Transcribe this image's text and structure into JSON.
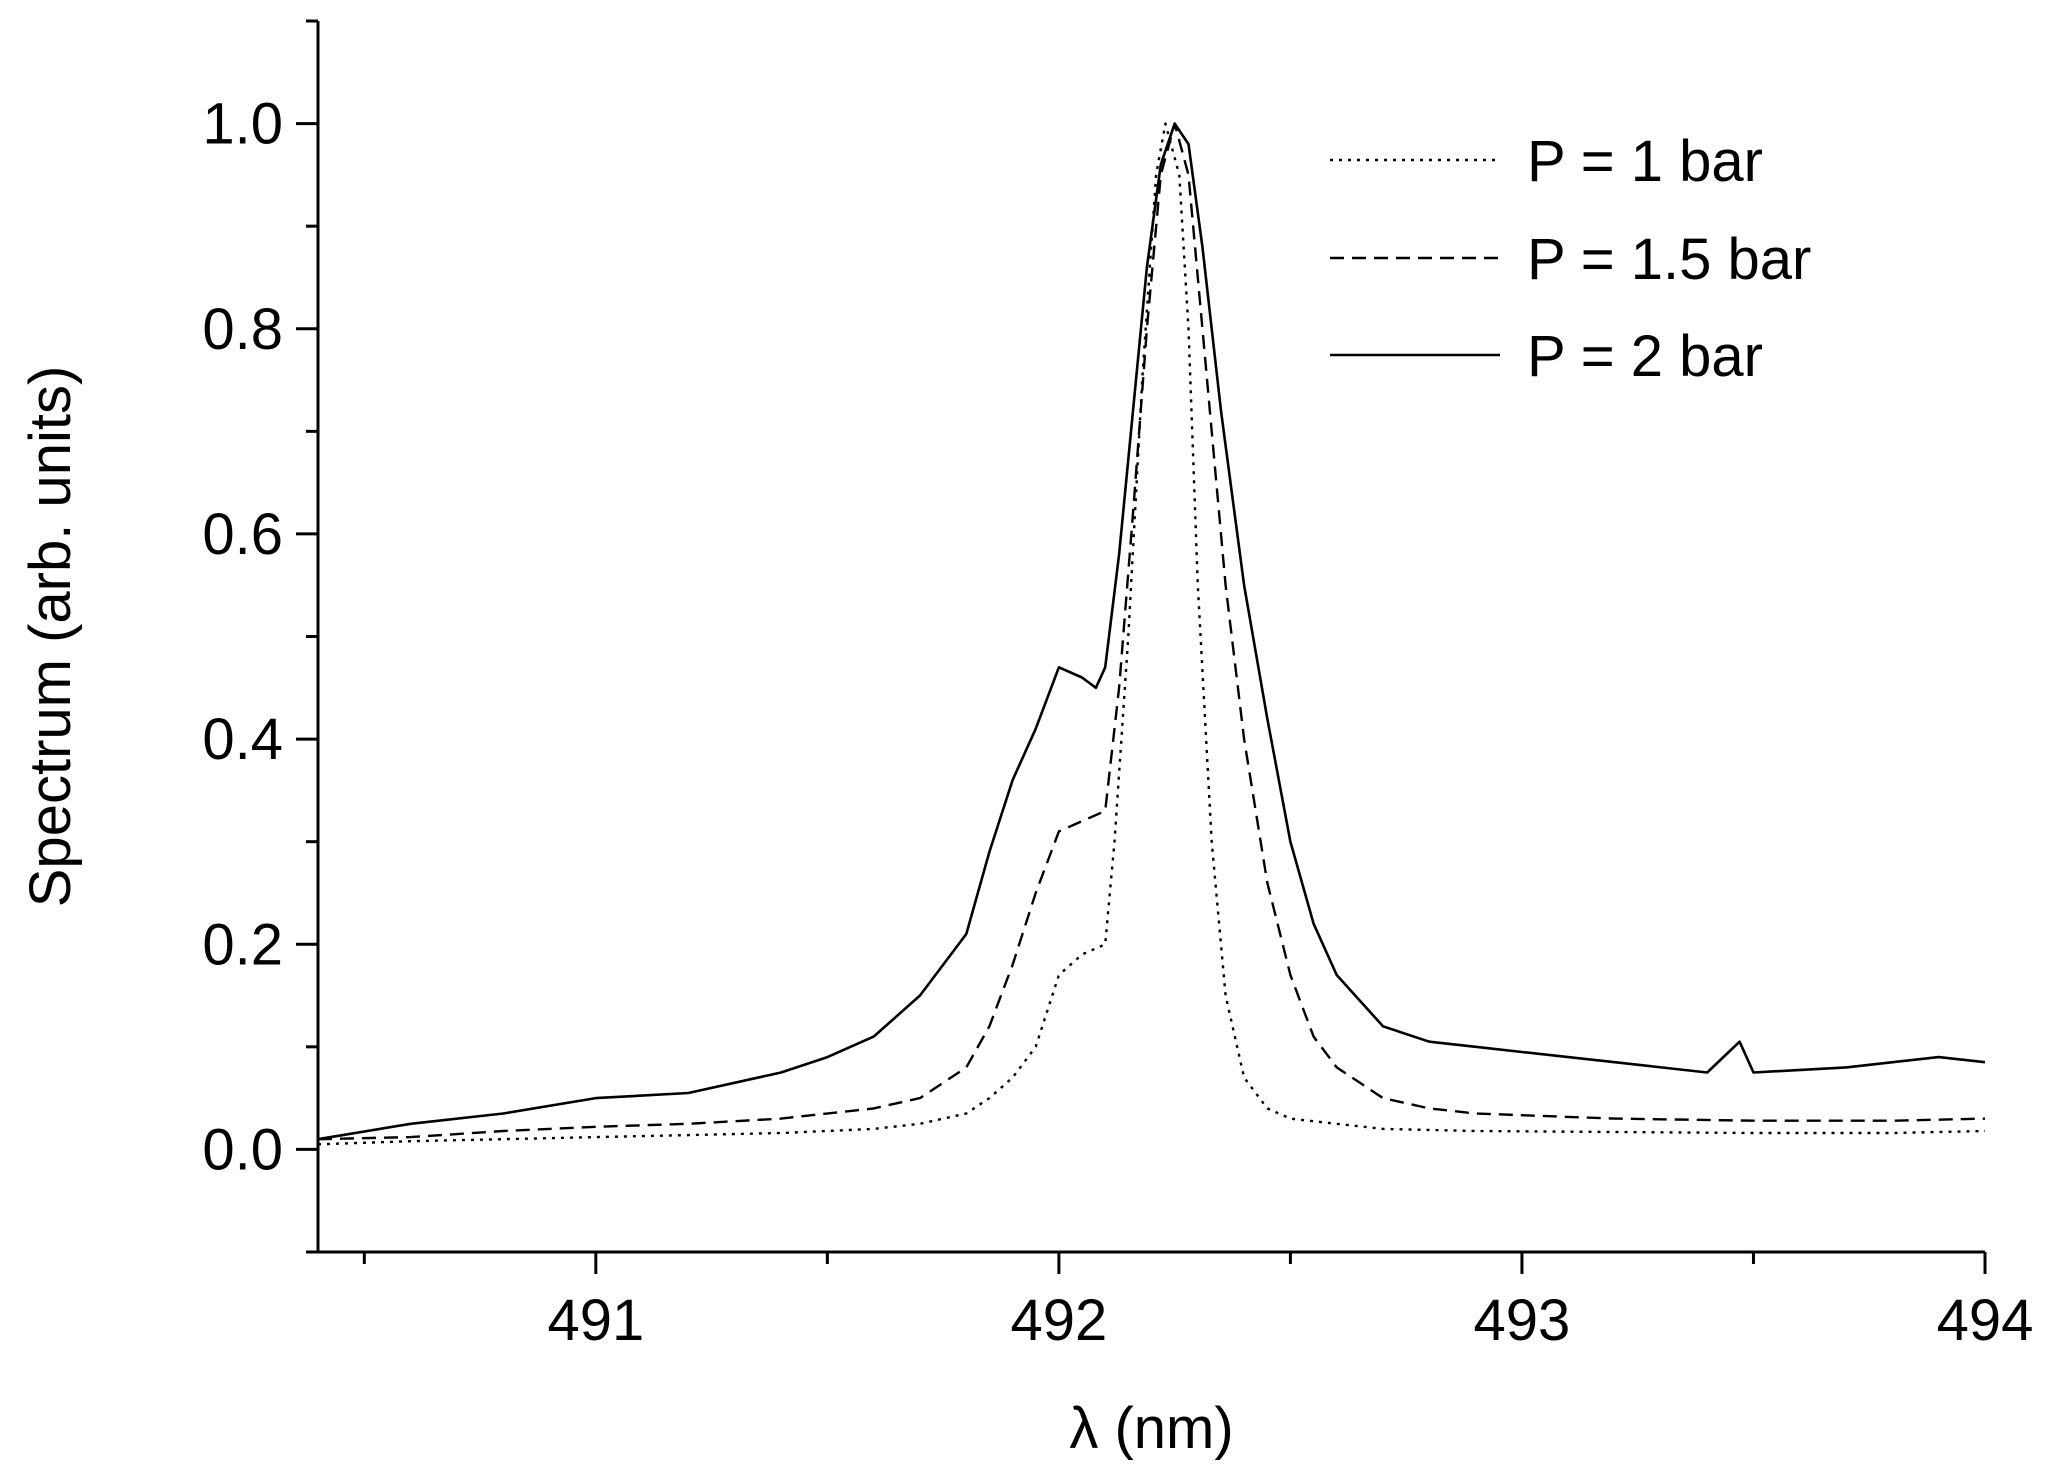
{
  "chart_data": {
    "type": "line",
    "title": "",
    "xlabel": "λ (nm)",
    "ylabel": "Spectrum (arb. units)",
    "xlim": [
      490.4,
      494.0
    ],
    "ylim": [
      -0.1,
      1.1
    ],
    "x_ticks": [
      491,
      492,
      493,
      494
    ],
    "x_tick_labels": [
      "491",
      "492",
      "493",
      "494"
    ],
    "x_minor_ticks": [
      490.5,
      491.5,
      492.5,
      493.5
    ],
    "y_ticks": [
      0.0,
      0.2,
      0.4,
      0.6,
      0.8,
      1.0
    ],
    "y_tick_labels": [
      "0.0",
      "0.2",
      "0.4",
      "0.6",
      "0.8",
      "1.0"
    ],
    "y_minor_ticks": [
      -0.1,
      0.1,
      0.3,
      0.5,
      0.7,
      0.9,
      1.1
    ],
    "grid": false,
    "legend_position": "top-right",
    "series": [
      {
        "name": "P = 1 bar",
        "style": "dotted",
        "color": "#000000",
        "x": [
          490.4,
          490.6,
          490.8,
          491.0,
          491.2,
          491.4,
          491.6,
          491.7,
          491.8,
          491.85,
          491.9,
          491.95,
          492.0,
          492.05,
          492.1,
          492.12,
          492.15,
          492.18,
          492.21,
          492.23,
          492.26,
          492.28,
          492.3,
          492.33,
          492.36,
          492.4,
          492.45,
          492.5,
          492.6,
          492.7,
          492.9,
          493.2,
          493.5,
          493.8,
          494.0
        ],
        "y": [
          0.005,
          0.008,
          0.01,
          0.012,
          0.014,
          0.016,
          0.02,
          0.025,
          0.035,
          0.05,
          0.07,
          0.1,
          0.17,
          0.19,
          0.2,
          0.3,
          0.5,
          0.75,
          0.95,
          1.0,
          0.95,
          0.8,
          0.55,
          0.3,
          0.15,
          0.07,
          0.04,
          0.03,
          0.025,
          0.02,
          0.018,
          0.017,
          0.016,
          0.016,
          0.018
        ]
      },
      {
        "name": "P = 1.5 bar",
        "style": "dashed",
        "color": "#000000",
        "x": [
          490.4,
          490.6,
          490.8,
          491.0,
          491.2,
          491.4,
          491.6,
          491.7,
          491.8,
          491.85,
          491.9,
          491.95,
          492.0,
          492.05,
          492.1,
          492.13,
          492.16,
          492.19,
          492.22,
          492.25,
          492.28,
          492.3,
          492.33,
          492.36,
          492.4,
          492.45,
          492.5,
          492.55,
          492.6,
          492.7,
          492.8,
          492.9,
          493.2,
          493.5,
          493.8,
          494.0
        ],
        "y": [
          0.01,
          0.012,
          0.018,
          0.022,
          0.025,
          0.03,
          0.04,
          0.05,
          0.08,
          0.12,
          0.18,
          0.25,
          0.31,
          0.32,
          0.33,
          0.45,
          0.62,
          0.8,
          0.95,
          1.0,
          0.95,
          0.85,
          0.7,
          0.55,
          0.4,
          0.26,
          0.17,
          0.11,
          0.08,
          0.05,
          0.04,
          0.035,
          0.03,
          0.028,
          0.028,
          0.03
        ]
      },
      {
        "name": "P = 2 bar",
        "style": "solid",
        "color": "#000000",
        "x": [
          490.4,
          490.6,
          490.8,
          491.0,
          491.2,
          491.4,
          491.5,
          491.6,
          491.7,
          491.8,
          491.85,
          491.9,
          491.95,
          492.0,
          492.05,
          492.08,
          492.1,
          492.13,
          492.16,
          492.19,
          492.22,
          492.25,
          492.28,
          492.31,
          492.35,
          492.4,
          492.45,
          492.5,
          492.55,
          492.6,
          492.7,
          492.8,
          492.9,
          493.0,
          493.2,
          493.4,
          493.47,
          493.5,
          493.7,
          493.9,
          494.0
        ],
        "y": [
          0.01,
          0.025,
          0.035,
          0.05,
          0.055,
          0.075,
          0.09,
          0.11,
          0.15,
          0.21,
          0.29,
          0.36,
          0.41,
          0.47,
          0.46,
          0.45,
          0.47,
          0.58,
          0.72,
          0.86,
          0.96,
          1.0,
          0.98,
          0.88,
          0.72,
          0.55,
          0.42,
          0.3,
          0.22,
          0.17,
          0.12,
          0.105,
          0.1,
          0.095,
          0.085,
          0.075,
          0.105,
          0.075,
          0.08,
          0.09,
          0.085
        ]
      }
    ]
  }
}
